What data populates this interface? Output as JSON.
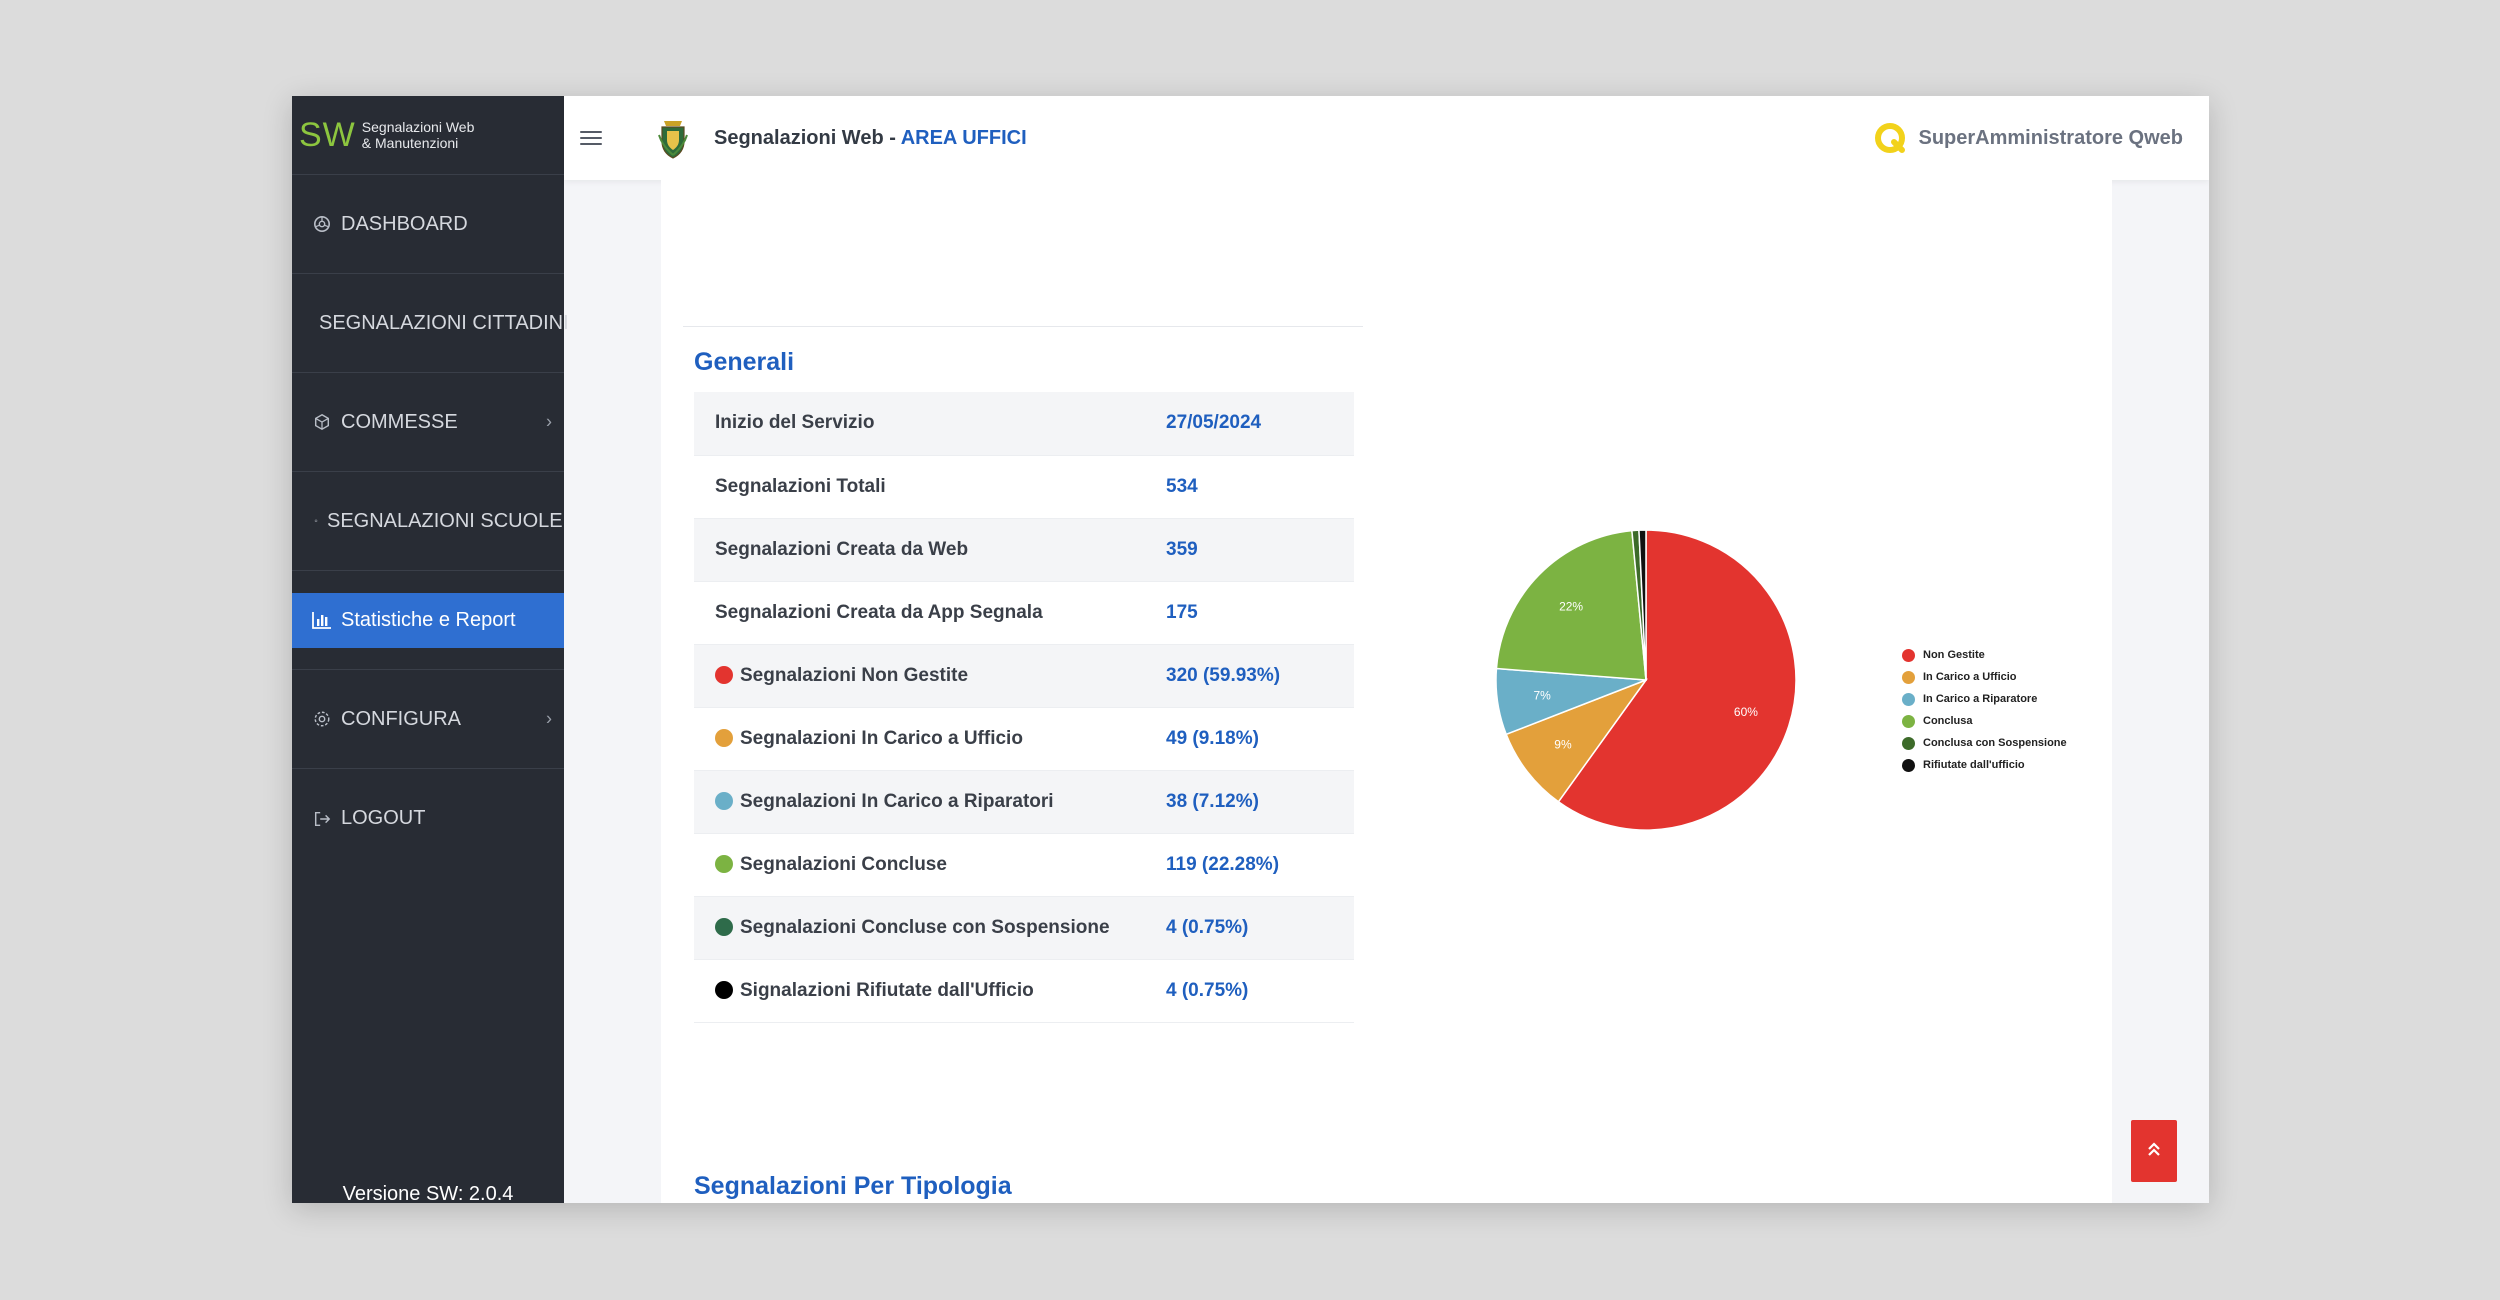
{
  "brand": {
    "logo": "SW",
    "sub_line1": "Segnalazioni Web",
    "sub_line2": "& Manutenzioni"
  },
  "sidebar": {
    "items": [
      {
        "label": "DASHBOARD",
        "icon": "dashboard-icon"
      },
      {
        "label": "SEGNALAZIONI CITTADINI",
        "icon": ""
      },
      {
        "label": "COMMESSE",
        "icon": "box-icon",
        "has_chevron": true
      },
      {
        "label": "SEGNALAZIONI SCUOLE",
        "icon": "small-dot-icon"
      },
      {
        "label": "Statistiche e Report",
        "icon": "bar-chart-icon",
        "active": true
      },
      {
        "label": "CONFIGURA",
        "icon": "gear-icon",
        "has_chevron": true
      },
      {
        "label": "LOGOUT",
        "icon": "logout-icon"
      }
    ],
    "version": "Versione SW: 2.0.4"
  },
  "header": {
    "title_main": "Segnalazioni Web - ",
    "title_accent": "AREA UFFICI",
    "user": "SuperAmministratore Qweb"
  },
  "sections": {
    "generali": "Generali",
    "per_tipologia": "Segnalazioni Per Tipologia"
  },
  "stats": [
    {
      "label": "Inizio del Servizio",
      "value": "27/05/2024"
    },
    {
      "label": "Segnalazioni Totali",
      "value": "534"
    },
    {
      "label": "Segnalazioni Creata da Web",
      "value": "359"
    },
    {
      "label": "Segnalazioni Creata da App Segnala",
      "value": "175"
    },
    {
      "label": "Segnalazioni Non Gestite",
      "value": "320 (59.93%)",
      "color": "#e3342f"
    },
    {
      "label": "Segnalazioni In Carico a Ufficio",
      "value": "49 (9.18%)",
      "color": "#e3a03b"
    },
    {
      "label": "Segnalazioni In Carico a Riparatori",
      "value": "38 (7.12%)",
      "color": "#6aafc8"
    },
    {
      "label": "Segnalazioni Concluse",
      "value": "119 (22.28%)",
      "color": "#7cb342"
    },
    {
      "label": "Segnalazioni Concluse con Sospensione",
      "value": "4 (0.75%)",
      "color": "#2e6b4a"
    },
    {
      "label": "Signalazioni Rifiutate dall'Ufficio",
      "value": "4 (0.75%)",
      "color": "#000000"
    }
  ],
  "chart_data": {
    "type": "pie",
    "title": "",
    "categories": [
      "Non Gestite",
      "In Carico a Ufficio",
      "In Carico a Riparatore",
      "Conclusa",
      "Conclusa con Sospensione",
      "Rifiutate dall'ufficio"
    ],
    "values": [
      320,
      49,
      38,
      119,
      4,
      4
    ],
    "labels": [
      "60%",
      "9%",
      "7%",
      "22%",
      "",
      ""
    ],
    "colors": [
      "#e3342f",
      "#e3a03b",
      "#6aafc8",
      "#7cb342",
      "#3d6b2a",
      "#111111"
    ],
    "legend_position": "right"
  }
}
